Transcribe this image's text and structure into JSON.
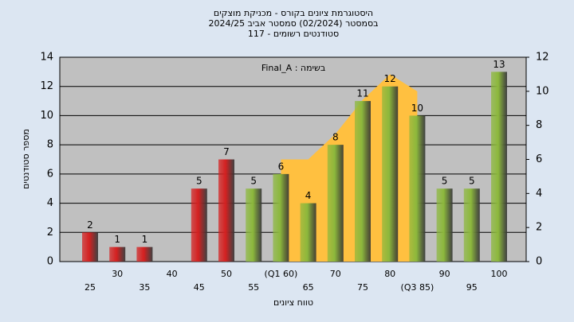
{
  "chart_data": {
    "type": "bar",
    "title": "היסטוגרמת ציונים בקורס - מכניקת מוצקים",
    "subtitle": [
      "בסמסטר  (02/2024)  סמסטר אביב 2024/25",
      "סטודנטים רשומים - 117"
    ],
    "annotation": "בשימה : Final_A",
    "x_label": "טווח ציונים",
    "y_label": "מספר סטודנטים",
    "categories": [
      "25",
      "30",
      "35",
      "40",
      "45",
      "50",
      "55",
      "(Q1 60)",
      "65",
      "70",
      "75",
      "80",
      "(Q3 85)",
      "90",
      "95",
      "100"
    ],
    "series": [
      {
        "name": "bars",
        "values": [
          2,
          1,
          1,
          null,
          5,
          7,
          5,
          6,
          4,
          8,
          11,
          12,
          10,
          5,
          5,
          13
        ],
        "colors": [
          "#d42020",
          "#d42020",
          "#d42020",
          "#d42020",
          "#d42020",
          "#d42020",
          "#8cb83c",
          "#8cb83c",
          "#8cb83c",
          "#8cb83c",
          "#8cb83c",
          "#8cb83c",
          "#8cb83c",
          "#8cb83c",
          "#8cb83c",
          "#8cb83c"
        ]
      },
      {
        "name": "range",
        "axis": "y2",
        "color": "#ffc040",
        "values": [
          null,
          null,
          null,
          null,
          null,
          null,
          null,
          6,
          6,
          7.5,
          9.5,
          11,
          10,
          null,
          null,
          null
        ]
      }
    ],
    "ylim": [
      0,
      14
    ],
    "yticks": [
      0,
      2,
      4,
      6,
      8,
      10,
      12,
      14
    ],
    "y2lim": [
      0,
      12
    ],
    "y2ticks": [
      0,
      2,
      4,
      6,
      8,
      10,
      12
    ],
    "grid": true
  }
}
